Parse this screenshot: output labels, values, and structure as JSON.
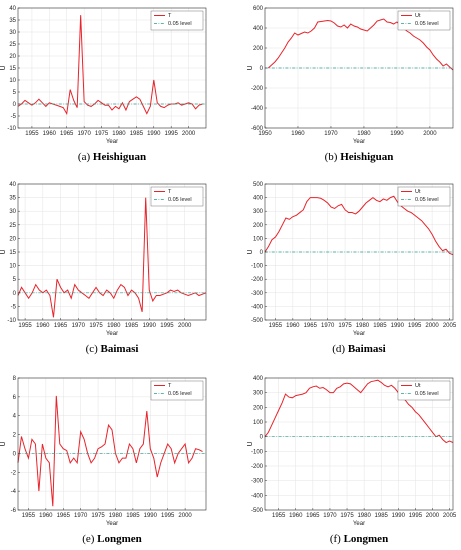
{
  "chart_data": [
    {
      "type": "line",
      "caption_label": "(a)",
      "caption_name": "Heishiguan",
      "xlabel": "Year",
      "ylabel": "U",
      "xlim": [
        1951,
        2005
      ],
      "ylim": [
        -10,
        40
      ],
      "xticks": [
        1955,
        1960,
        1965,
        1970,
        1975,
        1980,
        1985,
        1990,
        1995,
        2000
      ],
      "yticks": [
        -10,
        -5,
        0,
        5,
        10,
        15,
        20,
        25,
        30,
        35,
        40
      ],
      "grid": true,
      "legend": "top-right",
      "series": [
        {
          "name": "T",
          "color": "#e8232a",
          "x": [
            1951,
            1952,
            1953,
            1954,
            1955,
            1956,
            1957,
            1958,
            1959,
            1960,
            1961,
            1962,
            1963,
            1964,
            1965,
            1966,
            1967,
            1968,
            1969,
            1970,
            1971,
            1972,
            1973,
            1974,
            1975,
            1976,
            1977,
            1978,
            1979,
            1980,
            1981,
            1982,
            1983,
            1984,
            1985,
            1986,
            1987,
            1988,
            1989,
            1990,
            1991,
            1992,
            1993,
            1994,
            1995,
            1996,
            1997,
            1998,
            1999,
            2000,
            2001,
            2002,
            2003,
            2004
          ],
          "y": [
            -1,
            0,
            1.5,
            0.5,
            -0.5,
            0.5,
            2,
            0.5,
            -1,
            0.5,
            0,
            -0.5,
            -1,
            -1.5,
            -4,
            6,
            1.5,
            -1.5,
            37,
            1,
            -0.5,
            -1,
            0,
            1.5,
            0.5,
            -0.5,
            -0.5,
            -2.5,
            -1,
            -2,
            0.5,
            -2.5,
            1,
            2,
            3,
            2,
            -1,
            -4,
            -1,
            10,
            0.5,
            -1,
            -1.5,
            -0.5,
            0,
            0,
            0.5,
            -0.5,
            0,
            0.5,
            0,
            -2,
            -0.5,
            0
          ]
        },
        {
          "name": "0.05 level",
          "color": "#2a9d8f",
          "dash": true,
          "x": [
            1951,
            2005
          ],
          "y": [
            0,
            0
          ]
        }
      ]
    },
    {
      "type": "line",
      "caption_label": "(b)",
      "caption_name": "Heishiguan",
      "xlabel": "Year",
      "ylabel": "U",
      "xlim": [
        1950,
        2007
      ],
      "ylim": [
        -600,
        600
      ],
      "xticks": [
        1950,
        1960,
        1970,
        1980,
        1990,
        2000
      ],
      "yticks": [
        -600,
        -400,
        -200,
        0,
        200,
        400,
        600
      ],
      "grid": true,
      "legend": "top-right",
      "series": [
        {
          "name": "Ut",
          "color": "#e8232a",
          "x": [
            1951,
            1952,
            1953,
            1954,
            1955,
            1956,
            1957,
            1958,
            1959,
            1960,
            1961,
            1962,
            1963,
            1964,
            1965,
            1966,
            1967,
            1968,
            1969,
            1970,
            1971,
            1972,
            1973,
            1974,
            1975,
            1976,
            1977,
            1978,
            1979,
            1980,
            1981,
            1982,
            1983,
            1984,
            1985,
            1986,
            1987,
            1988,
            1989,
            1990,
            1991,
            1992,
            1993,
            1994,
            1995,
            1996,
            1997,
            1998,
            1999,
            2000,
            2001,
            2002,
            2003,
            2004,
            2005,
            2006,
            2007
          ],
          "y": [
            0,
            30,
            60,
            100,
            150,
            200,
            260,
            300,
            350,
            330,
            345,
            360,
            350,
            370,
            400,
            460,
            465,
            470,
            475,
            470,
            450,
            420,
            410,
            430,
            400,
            440,
            420,
            410,
            390,
            380,
            370,
            400,
            430,
            470,
            480,
            490,
            460,
            455,
            440,
            460,
            430,
            400,
            370,
            350,
            320,
            300,
            280,
            250,
            210,
            180,
            130,
            90,
            60,
            20,
            40,
            10,
            -20
          ]
        },
        {
          "name": "0.05 level",
          "color": "#2a9d8f",
          "dash": true,
          "x": [
            1950,
            2007
          ],
          "y": [
            0,
            0
          ]
        }
      ]
    },
    {
      "type": "line",
      "caption_label": "(c)",
      "caption_name": "Baimasi",
      "xlabel": "Year",
      "ylabel": "U",
      "xlim": [
        1953,
        2006
      ],
      "ylim": [
        -10,
        40
      ],
      "xticks": [
        1955,
        1960,
        1965,
        1970,
        1975,
        1980,
        1985,
        1990,
        1995,
        2000
      ],
      "yticks": [
        -10,
        -5,
        0,
        5,
        10,
        15,
        20,
        25,
        30,
        35,
        40
      ],
      "grid": true,
      "legend": "top-right",
      "series": [
        {
          "name": "T",
          "color": "#e8232a",
          "x": [
            1953,
            1954,
            1955,
            1956,
            1957,
            1958,
            1959,
            1960,
            1961,
            1962,
            1963,
            1964,
            1965,
            1966,
            1967,
            1968,
            1969,
            1970,
            1971,
            1972,
            1973,
            1974,
            1975,
            1976,
            1977,
            1978,
            1979,
            1980,
            1981,
            1982,
            1983,
            1984,
            1985,
            1986,
            1987,
            1988,
            1989,
            1990,
            1991,
            1992,
            1993,
            1994,
            1995,
            1996,
            1997,
            1998,
            1999,
            2000,
            2001,
            2002,
            2003,
            2004,
            2005,
            2006
          ],
          "y": [
            -1,
            2,
            0,
            -2,
            0,
            3,
            1,
            0,
            1,
            -1,
            -9,
            5,
            2,
            0,
            1,
            -2,
            3,
            1,
            0,
            -1,
            -2,
            0,
            2,
            0,
            -1,
            1,
            0,
            -2,
            1,
            3,
            2,
            -1,
            1,
            0,
            -2,
            -7,
            35,
            1,
            -3,
            -1,
            -1,
            -0.5,
            0,
            1,
            0.5,
            1,
            0,
            -0.5,
            -1,
            -0.5,
            0,
            -1,
            -0.5,
            0
          ]
        },
        {
          "name": "0.05 level",
          "color": "#2a9d8f",
          "dash": true,
          "x": [
            1953,
            2006
          ],
          "y": [
            0,
            0
          ]
        }
      ]
    },
    {
      "type": "line",
      "caption_label": "(d)",
      "caption_name": "Baimasi",
      "xlabel": "Year",
      "ylabel": "U",
      "xlim": [
        1952,
        2006
      ],
      "ylim": [
        -500,
        500
      ],
      "xticks": [
        1955,
        1960,
        1965,
        1970,
        1975,
        1980,
        1985,
        1990,
        1995,
        2000,
        2005
      ],
      "yticks": [
        -500,
        -400,
        -300,
        -200,
        -100,
        0,
        100,
        200,
        300,
        400,
        500
      ],
      "grid": true,
      "legend": "top-right",
      "series": [
        {
          "name": "Ut",
          "color": "#e8232a",
          "x": [
            1952,
            1953,
            1954,
            1955,
            1956,
            1957,
            1958,
            1959,
            1960,
            1961,
            1962,
            1963,
            1964,
            1965,
            1966,
            1967,
            1968,
            1969,
            1970,
            1971,
            1972,
            1973,
            1974,
            1975,
            1976,
            1977,
            1978,
            1979,
            1980,
            1981,
            1982,
            1983,
            1984,
            1985,
            1986,
            1987,
            1988,
            1989,
            1990,
            1991,
            1992,
            1993,
            1994,
            1995,
            1996,
            1997,
            1998,
            1999,
            2000,
            2001,
            2002,
            2003,
            2004,
            2005,
            2006
          ],
          "y": [
            0,
            40,
            90,
            110,
            150,
            200,
            250,
            240,
            260,
            270,
            290,
            310,
            370,
            400,
            400,
            400,
            395,
            380,
            360,
            330,
            320,
            340,
            350,
            310,
            290,
            290,
            280,
            300,
            330,
            360,
            380,
            400,
            380,
            370,
            390,
            380,
            400,
            410,
            370,
            340,
            320,
            300,
            290,
            270,
            250,
            230,
            200,
            170,
            130,
            80,
            40,
            10,
            20,
            -10,
            -20
          ]
        },
        {
          "name": "0.05 level",
          "color": "#2a9d8f",
          "dash": true,
          "x": [
            1952,
            2006
          ],
          "y": [
            0,
            0
          ]
        }
      ]
    },
    {
      "type": "line",
      "caption_label": "(e)",
      "caption_name": "Longmen",
      "xlabel": "Year",
      "ylabel": "U",
      "xlim": [
        1952,
        2006
      ],
      "ylim": [
        -6,
        8
      ],
      "xticks": [
        1955,
        1960,
        1965,
        1970,
        1975,
        1980,
        1985,
        1990,
        1995,
        2000
      ],
      "yticks": [
        -6,
        -4,
        -2,
        0,
        2,
        4,
        6,
        8
      ],
      "grid": true,
      "legend": "top-right",
      "series": [
        {
          "name": "T",
          "color": "#e8232a",
          "x": [
            1952,
            1953,
            1954,
            1955,
            1956,
            1957,
            1958,
            1959,
            1960,
            1961,
            1962,
            1963,
            1964,
            1965,
            1966,
            1967,
            1968,
            1969,
            1970,
            1971,
            1972,
            1973,
            1974,
            1975,
            1976,
            1977,
            1978,
            1979,
            1980,
            1981,
            1982,
            1983,
            1984,
            1985,
            1986,
            1987,
            1988,
            1989,
            1990,
            1991,
            1992,
            1993,
            1994,
            1995,
            1996,
            1997,
            1998,
            1999,
            2000,
            2001,
            2002,
            2003,
            2004,
            2005
          ],
          "y": [
            -1,
            1.8,
            0.5,
            -0.5,
            1.5,
            1,
            -4,
            1,
            -0.5,
            -1,
            -5.6,
            6.1,
            1,
            0.5,
            0.3,
            -1,
            -0.5,
            -1,
            2.3,
            1.5,
            0,
            -1,
            -0.5,
            0.5,
            0.7,
            1,
            3,
            2.5,
            0,
            -1,
            -0.5,
            -0.5,
            1,
            0.5,
            -1,
            0.5,
            1,
            4.5,
            0.5,
            -0.5,
            -2.5,
            -1,
            0,
            1,
            0.5,
            -1,
            0,
            0.5,
            1,
            -1,
            -0.5,
            0.5,
            0.4,
            0.2
          ]
        },
        {
          "name": "0.05 level",
          "color": "#2a9d8f",
          "dash": true,
          "x": [
            1952,
            2006
          ],
          "y": [
            0,
            0
          ]
        }
      ]
    },
    {
      "type": "line",
      "caption_label": "(f)",
      "caption_name": "Longmen",
      "xlabel": "Year",
      "ylabel": "U",
      "xlim": [
        1951,
        2006
      ],
      "ylim": [
        -500,
        400
      ],
      "xticks": [
        1955,
        1960,
        1965,
        1970,
        1975,
        1980,
        1985,
        1990,
        1995,
        2000,
        2005
      ],
      "yticks": [
        -500,
        -400,
        -300,
        -200,
        -100,
        0,
        100,
        200,
        300,
        400
      ],
      "grid": true,
      "legend": "top-right",
      "series": [
        {
          "name": "Ut",
          "color": "#e8232a",
          "x": [
            1951,
            1952,
            1953,
            1954,
            1955,
            1956,
            1957,
            1958,
            1959,
            1960,
            1961,
            1962,
            1963,
            1964,
            1965,
            1966,
            1967,
            1968,
            1969,
            1970,
            1971,
            1972,
            1973,
            1974,
            1975,
            1976,
            1977,
            1978,
            1979,
            1980,
            1981,
            1982,
            1983,
            1984,
            1985,
            1986,
            1987,
            1988,
            1989,
            1990,
            1991,
            1992,
            1993,
            1994,
            1995,
            1996,
            1997,
            1998,
            1999,
            2000,
            2001,
            2002,
            2003,
            2004,
            2005,
            2006
          ],
          "y": [
            0,
            30,
            80,
            130,
            180,
            230,
            290,
            270,
            265,
            280,
            285,
            290,
            300,
            330,
            340,
            345,
            330,
            335,
            320,
            300,
            300,
            330,
            340,
            360,
            365,
            360,
            340,
            320,
            300,
            330,
            360,
            375,
            380,
            385,
            370,
            350,
            340,
            350,
            330,
            300,
            270,
            250,
            220,
            200,
            170,
            150,
            120,
            90,
            60,
            30,
            0,
            10,
            -20,
            -40,
            -30,
            -40
          ]
        },
        {
          "name": "0.05 level",
          "color": "#2a9d8f",
          "dash": true,
          "x": [
            1951,
            2006
          ],
          "y": [
            0,
            0
          ]
        }
      ]
    }
  ]
}
